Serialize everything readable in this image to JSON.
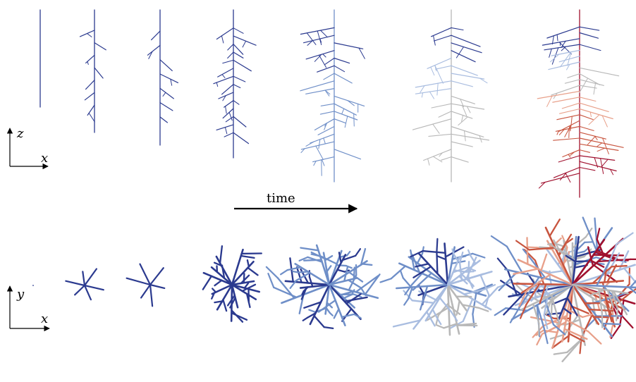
{
  "axes_side": {
    "vertical": "z",
    "horizontal": "x"
  },
  "axes_top": {
    "vertical": "y",
    "horizontal": "x"
  },
  "time_arrow": {
    "label": "time"
  },
  "panel_count": 7,
  "colors": {
    "early": "#2b3a8f",
    "mid_blue": "#6f8fc8",
    "light_blue": "#a9bde0",
    "gray": "#b8b8b8",
    "peach": "#e8a08a",
    "red": "#c8553f",
    "dark_red": "#a0102e"
  }
}
